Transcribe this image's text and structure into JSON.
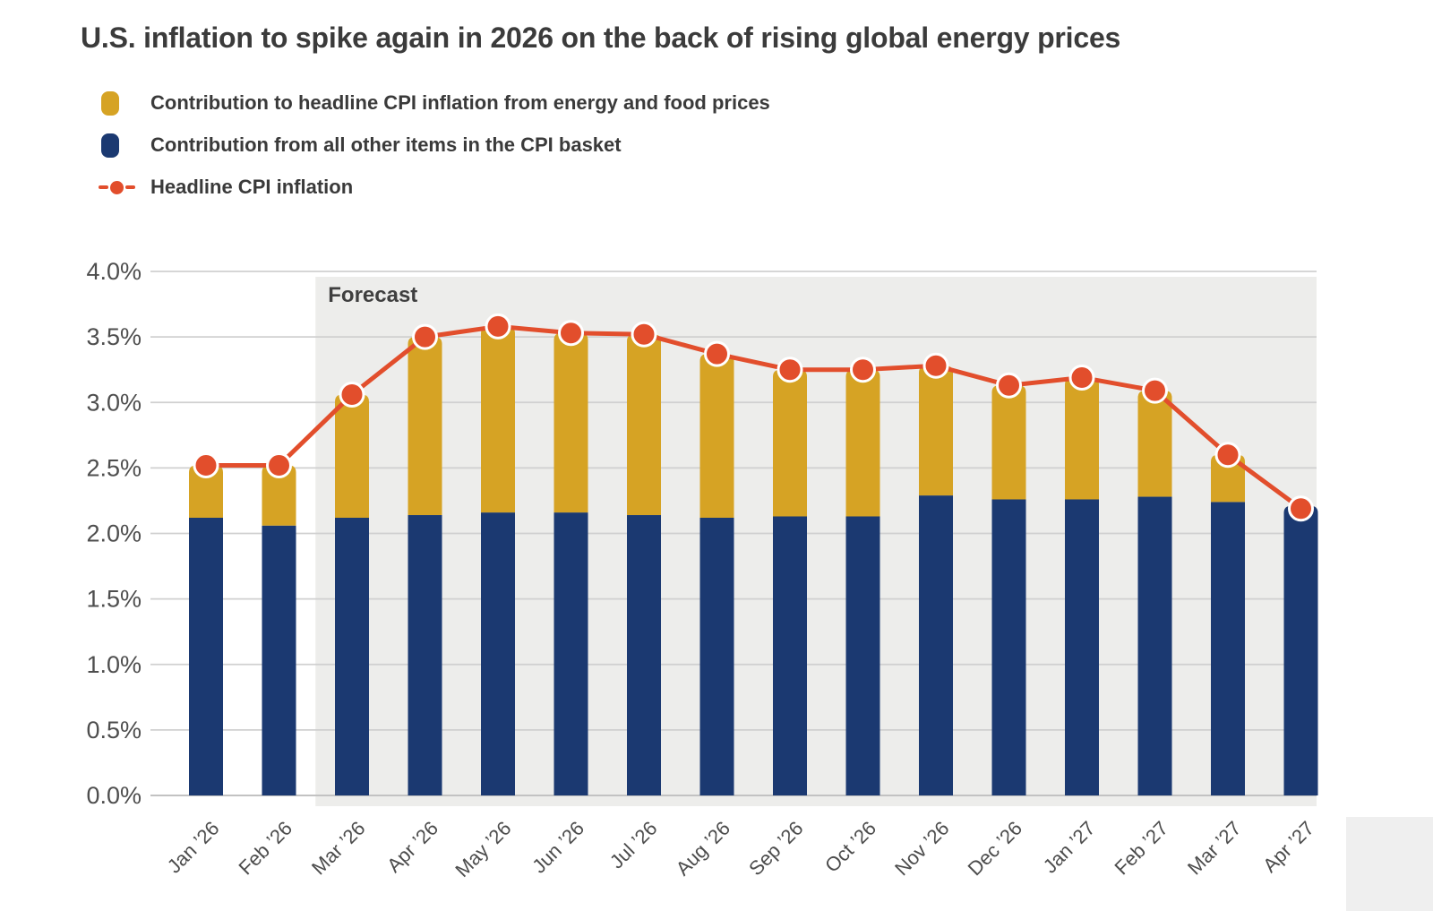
{
  "title": "U.S. inflation to spike again in 2026 on the back of rising global energy prices",
  "legend": [
    {
      "label": "Contribution to headline CPI inflation from energy and food prices",
      "color": "#D6A324",
      "symbol": "square"
    },
    {
      "label": "Contribution from all other items in the CPI basket",
      "color": "#1B3971",
      "symbol": "square"
    },
    {
      "label": "Headline CPI inflation",
      "color": "#E24E2C",
      "symbol": "line-dot"
    }
  ],
  "forecast_label": "Forecast",
  "chart_data": {
    "type": "bar",
    "subtype": "stacked-bars-with-line-overlay",
    "categories": [
      "Jan ’26",
      "Feb ’26",
      "Mar ’26",
      "Apr ’26",
      "May ’26",
      "Jun ’26",
      "Jul ’26",
      "Aug ’26",
      "Sep ’26",
      "Oct ’26",
      "Nov ’26",
      "Dec ’26",
      "Jan ’27",
      "Feb ’27",
      "Mar ’27",
      "Apr ’27"
    ],
    "series": [
      {
        "name": "Contribution to headline CPI inflation from energy and food prices",
        "type": "bar",
        "color": "#D6A324",
        "values": [
          0.4,
          0.46,
          0.94,
          1.36,
          1.42,
          1.37,
          1.38,
          1.25,
          1.12,
          1.12,
          0.99,
          0.87,
          0.93,
          0.81,
          0.36,
          -0.02
        ]
      },
      {
        "name": "Contribution from all other items in the CPI basket",
        "type": "bar",
        "color": "#1B3971",
        "values": [
          2.12,
          2.06,
          2.12,
          2.14,
          2.16,
          2.16,
          2.14,
          2.12,
          2.13,
          2.13,
          2.29,
          2.26,
          2.26,
          2.28,
          2.24,
          2.21
        ]
      },
      {
        "name": "Headline CPI inflation",
        "type": "line",
        "color": "#E24E2C",
        "marker_stroke": "#FFFFFF",
        "values": [
          2.52,
          2.52,
          3.06,
          3.5,
          3.58,
          3.53,
          3.52,
          3.37,
          3.25,
          3.25,
          3.28,
          3.13,
          3.19,
          3.09,
          2.6,
          2.19
        ]
      }
    ],
    "title": "U.S. inflation to spike again in 2026 on the back of rising global energy prices",
    "xlabel": "",
    "ylabel": "",
    "ylim": [
      0.0,
      4.0
    ],
    "yticks": [
      "0.0%",
      "0.5%",
      "1.0%",
      "1.5%",
      "2.0%",
      "2.5%",
      "3.0%",
      "3.5%",
      "4.0%"
    ],
    "grid": true,
    "legend_position": "top-left",
    "forecast_region": {
      "label": "Forecast",
      "starts_between": [
        "Feb ’26",
        "Mar ’26"
      ],
      "band_color": "#EDEDEB"
    },
    "gridline_color": "#D0D0D0",
    "axis_text_color": "#4C4C4C"
  }
}
